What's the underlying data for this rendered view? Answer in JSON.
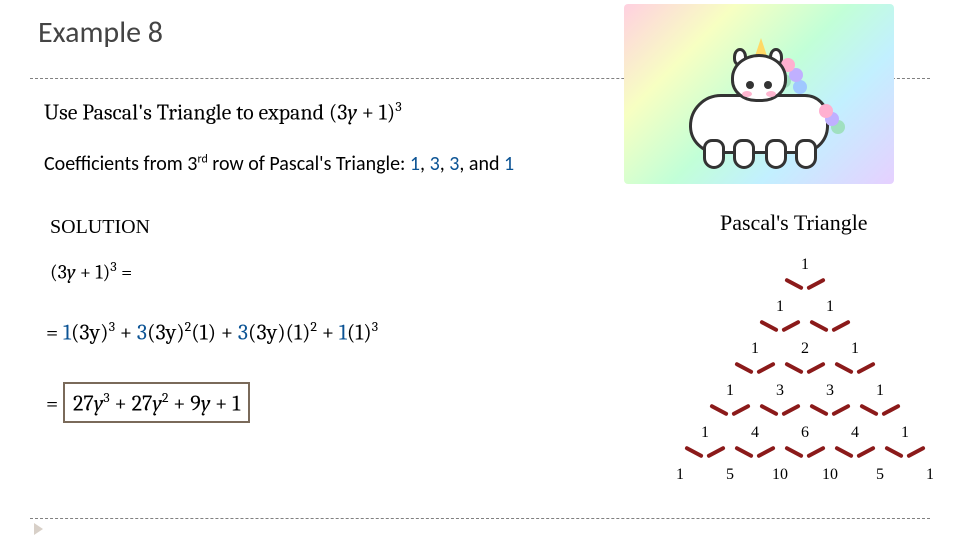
{
  "title": "Example 8",
  "problem": {
    "prefix": "Use Pascal's Triangle to expand ",
    "expr_base": "(3",
    "expr_var": "y",
    "expr_mid": " + 1)",
    "expr_pow": "3"
  },
  "coefficients": {
    "prefix": "Coefficients from 3",
    "ord": "rd",
    "mid": " row of Pascal's Triangle:   ",
    "c1": "1",
    "sep1": ", ",
    "c2": "3",
    "sep2": ", ",
    "c3": "3",
    "sep3": ", and ",
    "c4": "1"
  },
  "solution_label": "SOLUTION",
  "eq1": {
    "base": "(3",
    "var": "y",
    "mid": " + 1)",
    "pow": "3",
    "eq": " ="
  },
  "eq2": {
    "eq": "= ",
    "t1a": "1",
    "t1b": "(3y)",
    "t1p": "3",
    "plus1": " + ",
    "t2a": "3",
    "t2b": "(3y)",
    "t2p": "2",
    "t2c": "(1)",
    "plus2": " + ",
    "t3a": "3",
    "t3b": "(3y)(1)",
    "t3p": "2",
    "plus3": " + ",
    "t4a": "1",
    "t4b": "(1)",
    "t4p": "3"
  },
  "eq3": {
    "eq": "= ",
    "ans1a": "27",
    "ans1v": "y",
    "ans1p": "3",
    "plus1": " + ",
    "ans2a": "27",
    "ans2v": "y",
    "ans2p": "2",
    "plus2": " + ",
    "ans3a": "9",
    "ans3v": "y",
    "plus3": " + ",
    "ans4": "1"
  },
  "pascal_title": "Pascal's Triangle",
  "pascal": {
    "rows": [
      {
        "nums": [
          "1"
        ],
        "start": 200,
        "step": 50
      },
      {
        "nums": [
          "1",
          "1"
        ],
        "start": 175,
        "step": 50
      },
      {
        "nums": [
          "1",
          "2",
          "1"
        ],
        "start": 150,
        "step": 50
      },
      {
        "nums": [
          "1",
          "3",
          "3",
          "1"
        ],
        "start": 125,
        "step": 50
      },
      {
        "nums": [
          "1",
          "4",
          "6",
          "4",
          "1"
        ],
        "start": 100,
        "step": 50
      },
      {
        "nums": [
          "1",
          "5",
          "10",
          "10",
          "5",
          "1"
        ],
        "start": 75,
        "step": 50
      }
    ],
    "edge_color": "#8b1a1a"
  },
  "colors": {
    "title": "#444444",
    "blue": "#0b5394",
    "dash": "#808080",
    "box": "#7a6a5a",
    "edge": "#8b1a1a"
  }
}
